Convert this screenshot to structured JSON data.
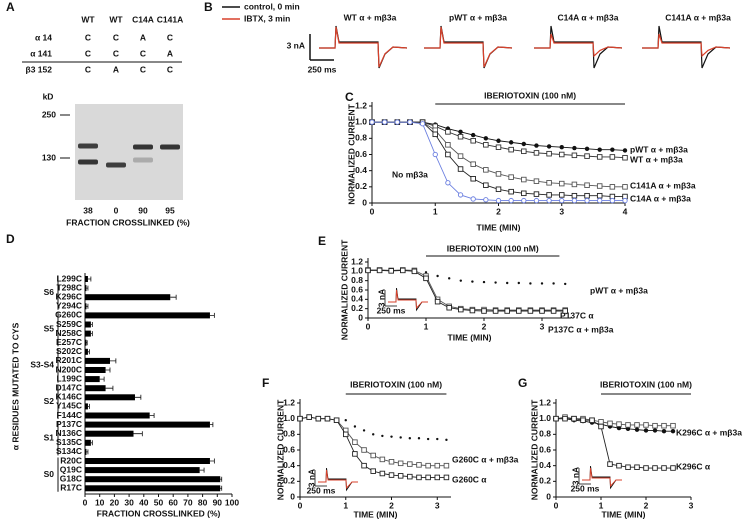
{
  "panel_labels": [
    "A",
    "B",
    "C",
    "D",
    "E",
    "F",
    "G"
  ],
  "panel_a": {
    "columns": [
      "WT",
      "WT",
      "C14A",
      "C141A"
    ],
    "rows": [
      {
        "label": "α 14",
        "cells": [
          "C",
          "C",
          "A",
          "C"
        ]
      },
      {
        "label": "α 141",
        "cells": [
          "C",
          "C",
          "C",
          "A"
        ]
      },
      {
        "label": "β3 152",
        "cells": [
          "C",
          "A",
          "C",
          "C"
        ]
      }
    ],
    "kd_label": "kD",
    "kd_markers": [
      250,
      130
    ],
    "fractions": [
      38,
      0,
      90,
      95
    ],
    "fraction_label": "FRACTION CROSSLINKED (%)"
  },
  "panel_b": {
    "legend": [
      {
        "name": "control, 0 min",
        "color": "#111111"
      },
      {
        "name": "IBTX, 3 min",
        "color": "#d9412b"
      }
    ],
    "traces": [
      "WT α + mβ3a",
      "pWT α + mβ3a",
      "C14A α + mβ3a",
      "C141A α + mβ3a"
    ],
    "scale_current": "3 nA",
    "scale_time": "250 ms"
  },
  "chart_data": [
    {
      "type": "line",
      "x_label": "TIME (MIN)",
      "y_label": "NORMALIZED CURRENT",
      "annotation": {
        "text": "IBERIOTOXIN (100 nM)",
        "x": [
          1,
          4
        ]
      },
      "x": [
        0,
        0.2,
        0.4,
        0.6,
        0.8,
        1.0,
        1.2,
        1.4,
        1.6,
        1.8,
        2.0,
        2.2,
        2.4,
        2.6,
        2.8,
        3.0,
        3.2,
        3.4,
        3.6,
        3.8,
        4.0
      ],
      "xlim": [
        0,
        4
      ],
      "xticks": [
        0,
        1,
        2,
        3,
        4
      ],
      "ylim": [
        0,
        1.2
      ],
      "yticks": [
        0,
        0.2,
        0.4,
        0.6,
        0.8,
        {
          "value": 1,
          "label": "1.0"
        },
        1.2
      ],
      "series": [
        {
          "name": "pWT α + mβ3a",
          "color": "#111111",
          "marker": "circle",
          "values": [
            1,
            1,
            1,
            1,
            1,
            0.97,
            0.92,
            0.88,
            0.84,
            0.8,
            0.77,
            0.75,
            0.73,
            0.71,
            0.7,
            0.69,
            0.68,
            0.67,
            0.66,
            0.66,
            0.65
          ]
        },
        {
          "name": "WT α + mβ3a",
          "color": "#333333",
          "marker": "square",
          "values": [
            1,
            1,
            1,
            1,
            1,
            0.95,
            0.88,
            0.82,
            0.77,
            0.72,
            0.69,
            0.66,
            0.64,
            0.62,
            0.61,
            0.6,
            0.59,
            0.58,
            0.57,
            0.57,
            0.56
          ]
        },
        {
          "name": "C141A α + mβ3a",
          "color": "#555555",
          "marker": "square",
          "values": [
            1,
            1,
            1,
            1,
            1,
            0.9,
            0.72,
            0.58,
            0.48,
            0.41,
            0.36,
            0.32,
            0.29,
            0.27,
            0.25,
            0.24,
            0.23,
            0.22,
            0.21,
            0.2,
            0.2
          ]
        },
        {
          "name": "C14A α + mβ3a",
          "color": "#222222",
          "marker": "square",
          "values": [
            1,
            1,
            1,
            1,
            1,
            0.85,
            0.6,
            0.42,
            0.3,
            0.22,
            0.17,
            0.14,
            0.12,
            0.11,
            0.1,
            0.1,
            0.09,
            0.09,
            0.09,
            0.08,
            0.08
          ]
        },
        {
          "name": "No mβ3a",
          "color": "#6b7fe0",
          "marker": "open-circle",
          "values": [
            1,
            1,
            1,
            1,
            0.98,
            0.6,
            0.25,
            0.1,
            0.05,
            0.04,
            0.03,
            0.03,
            0.03,
            0.03,
            0.03,
            0.03,
            0.03,
            0.03,
            0.03,
            0.03,
            0.03
          ]
        }
      ]
    },
    {
      "type": "hbar",
      "x_label": "FRACTION CROSSLINKED (%)",
      "y_label": "α RESIDUES MUTATED TO CYS",
      "color": "#000000",
      "group_labels": [
        "S6",
        "S5",
        "S3-S4",
        "S2",
        "S1",
        "S0"
      ],
      "categories": [
        "L299C",
        "T298C",
        "K296C",
        "Y294C",
        "G260C",
        "S259C",
        "N258C",
        "E257C",
        "S202C",
        "R201C",
        "N200C",
        "L199C",
        "D147C",
        "K146C",
        "Y145C",
        "F144C",
        "P137C",
        "N136C",
        "S135C",
        "S134C",
        "R20C",
        "Q19C",
        "G18C",
        "R17C"
      ],
      "values": [
        2,
        1,
        58,
        1,
        85,
        4,
        4,
        1,
        2,
        17,
        14,
        10,
        14,
        34,
        2,
        44,
        85,
        33,
        4,
        1,
        85,
        78,
        92,
        92
      ],
      "errors": [
        2,
        1,
        4,
        1,
        3,
        1,
        1,
        0.5,
        1,
        4,
        3,
        3,
        5,
        4,
        1,
        3,
        2,
        6,
        1,
        1,
        3,
        3,
        1,
        1
      ],
      "xlim": [
        0,
        100
      ],
      "xticks": [
        0,
        10,
        20,
        30,
        40,
        50,
        60,
        70,
        80,
        90,
        100
      ]
    },
    {
      "type": "line",
      "x_label": "TIME (MIN)",
      "y_label": "NORMALIZED CURRENT",
      "annotation": {
        "text": "IBERIOTOXIN (100 nM)",
        "x": [
          1,
          3.3
        ]
      },
      "inset": {
        "current": "3 nA",
        "time": "250 ms"
      },
      "x": [
        0,
        0.2,
        0.4,
        0.6,
        0.8,
        1.0,
        1.2,
        1.4,
        1.6,
        1.8,
        2.0,
        2.2,
        2.4,
        2.6,
        2.8,
        3.0,
        3.2,
        3.4
      ],
      "xlim": [
        0,
        3.5
      ],
      "xticks": [
        0,
        1,
        2,
        3
      ],
      "ylim": [
        0,
        1.2
      ],
      "yticks": [
        0,
        0.2,
        0.4,
        0.6,
        0.8,
        {
          "value": 1,
          "label": "1.0"
        },
        1.2
      ],
      "series": [
        {
          "name": "pWT α + mβ3a",
          "color": "#111111",
          "marker": "dot",
          "values": [
            1,
            1,
            1,
            1,
            1,
            0.98,
            0.9,
            0.85,
            0.8,
            0.78,
            0.77,
            0.76,
            0.75,
            0.75,
            0.74,
            0.74,
            0.74,
            0.73
          ]
        },
        {
          "name": "P137C α",
          "color": "#555555",
          "marker": "square",
          "values": [
            1.03,
            1.03,
            1.02,
            1.03,
            1.02,
            0.9,
            0.4,
            0.25,
            0.2,
            0.18,
            0.18,
            0.17,
            0.17,
            0.17,
            0.17,
            0.17,
            0.17,
            0.17
          ]
        },
        {
          "name": "P137C α + mβ3a",
          "color": "#222222",
          "marker": "square",
          "values": [
            1.02,
            1.02,
            1.01,
            1.02,
            1,
            0.85,
            0.35,
            0.22,
            0.18,
            0.16,
            0.15,
            0.15,
            0.15,
            0.15,
            0.15,
            0.15,
            0.15,
            0.15
          ]
        }
      ]
    },
    {
      "type": "line",
      "x_label": "TIME (MIN)",
      "y_label": "NORMALIZED CURRENT",
      "annotation": {
        "text": "IBERIOTOXIN (100 nM)",
        "x": [
          1,
          3.2
        ]
      },
      "inset": {
        "current": "3 nA",
        "time": "250 ms"
      },
      "x": [
        0,
        0.2,
        0.4,
        0.6,
        0.8,
        1.0,
        1.2,
        1.4,
        1.6,
        1.8,
        2.0,
        2.2,
        2.4,
        2.6,
        2.8,
        3.0,
        3.2
      ],
      "xlim": [
        0,
        3.3
      ],
      "xticks": [
        0,
        1,
        2,
        3
      ],
      "ylim": [
        0,
        1.2
      ],
      "yticks": [
        0,
        0.2,
        0.4,
        0.6,
        0.8,
        {
          "value": 1,
          "label": "1.0"
        },
        1.2
      ],
      "series": [
        {
          "color": "#111111",
          "marker": "dot",
          "values": [
            1,
            1,
            1,
            1,
            1,
            0.98,
            0.9,
            0.85,
            0.8,
            0.78,
            0.77,
            0.76,
            0.75,
            0.75,
            0.74,
            0.74,
            0.73
          ]
        },
        {
          "name": "G260C α + mβ3a",
          "color": "#555555",
          "marker": "square",
          "values": [
            1,
            1.02,
            1,
            1,
            0.98,
            0.85,
            0.7,
            0.6,
            0.53,
            0.48,
            0.45,
            0.43,
            0.42,
            0.41,
            0.4,
            0.4,
            0.4
          ]
        },
        {
          "name": "G260C α",
          "color": "#222222",
          "marker": "square",
          "values": [
            1,
            1.02,
            1,
            1,
            0.98,
            0.8,
            0.55,
            0.4,
            0.33,
            0.3,
            0.28,
            0.27,
            0.26,
            0.25,
            0.25,
            0.25,
            0.25
          ]
        }
      ]
    },
    {
      "type": "line",
      "x_label": "TIME (MIN)",
      "y_label": "NORMALIZED CURRENT",
      "annotation": {
        "text": "IBERIOTOXIN (100 nM)",
        "x": [
          1,
          3
        ]
      },
      "inset": {
        "current": "3 nA",
        "time": "250 ms"
      },
      "x": [
        0,
        0.2,
        0.4,
        0.6,
        0.8,
        1.0,
        1.2,
        1.4,
        1.6,
        1.8,
        2.0,
        2.2,
        2.4,
        2.6
      ],
      "xlim": [
        0,
        3
      ],
      "xticks": [
        0,
        1,
        2,
        3
      ],
      "ylim": [
        0,
        1.2
      ],
      "yticks": [
        0,
        0.2,
        0.4,
        0.6,
        0.8,
        {
          "value": 1,
          "label": "1.0"
        },
        1.2
      ],
      "series": [
        {
          "color": "#111111",
          "marker": "circle",
          "values": [
            1,
            1,
            0.98,
            0.97,
            0.95,
            0.93,
            0.9,
            0.88,
            0.87,
            0.86,
            0.85,
            0.85,
            0.84,
            0.84
          ]
        },
        {
          "name": "K296C α + mβ3a",
          "color": "#555555",
          "marker": "square",
          "values": [
            1,
            1.02,
            1,
            1,
            0.98,
            0.96,
            0.94,
            0.93,
            0.92,
            0.92,
            0.92,
            0.91,
            0.91,
            0.91
          ]
        },
        {
          "name": "K296C α",
          "color": "#222222",
          "marker": "square",
          "values": [
            1,
            1,
            1,
            0.98,
            0.98,
            0.9,
            0.42,
            0.4,
            0.38,
            0.38,
            0.37,
            0.37,
            0.37,
            0.37
          ]
        }
      ]
    }
  ]
}
